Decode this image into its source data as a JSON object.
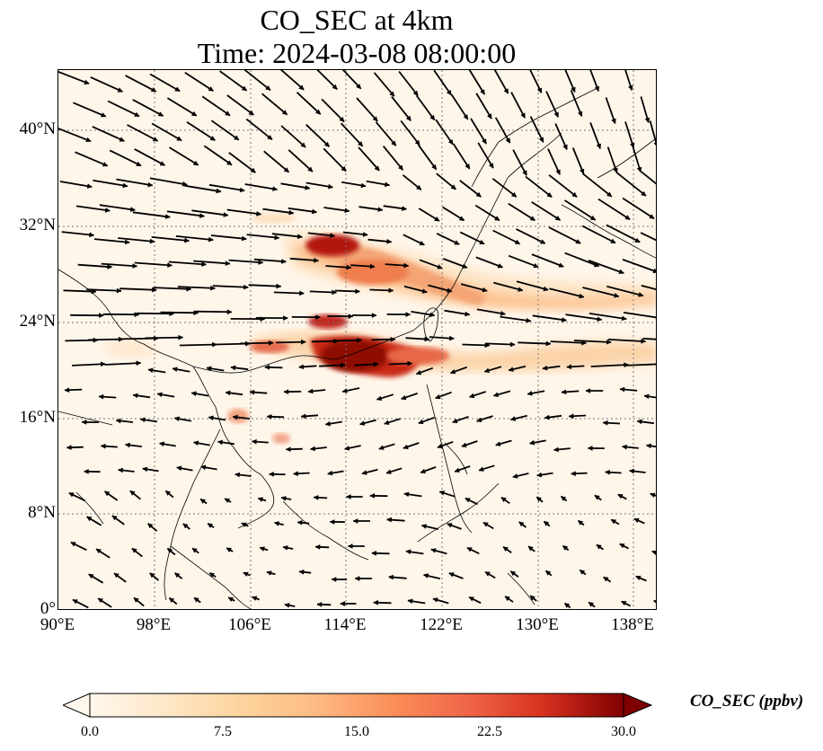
{
  "title_line1": "CO_SEC at 4km",
  "title_line2": "Time: 2024-03-08 08:00:00",
  "lat_ticks": [
    "40°N",
    "32°N",
    "24°N",
    "16°N",
    "8°N",
    "0°"
  ],
  "lon_ticks": [
    "90°E",
    "98°E",
    "106°E",
    "114°E",
    "122°E",
    "130°E",
    "138°E"
  ],
  "lon_range": [
    90,
    140
  ],
  "lat_range": [
    0,
    45
  ],
  "colorbar": {
    "label": "CO_SEC (ppbv)",
    "ticks": [
      "0.0",
      "7.5",
      "15.0",
      "22.5",
      "30.0"
    ],
    "range": [
      0,
      30
    ],
    "colormap": "OrRd",
    "extend": "both"
  },
  "colors": {
    "low": "#fff7ec",
    "mid": "#fdbb84",
    "high": "#d7301f",
    "max": "#7f0000",
    "coast": "#000000",
    "grid": "#777777"
  }
}
